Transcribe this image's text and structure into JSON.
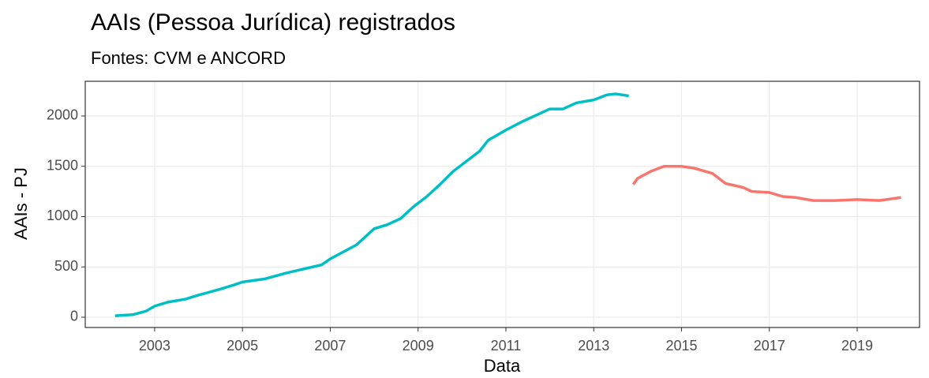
{
  "chart_data": {
    "type": "line",
    "title": "AAIs (Pessoa Jurídica) registrados",
    "subtitle": "Fontes: CVM e ANCORD",
    "x_label": "Data",
    "y_label": "AAIs - PJ",
    "xlim": [
      2001.42,
      2020.42
    ],
    "xticks": [
      2003,
      2005,
      2007,
      2009,
      2011,
      2013,
      2015,
      2017,
      2019
    ],
    "ylim": [
      -102,
      2345
    ],
    "yticks": [
      0,
      500,
      1000,
      1500,
      2000
    ],
    "grid": true,
    "series": [
      {
        "color": "#00bfc4",
        "x": [
          2002.1,
          2002.5,
          2002.8,
          2003.0,
          2003.3,
          2003.7,
          2004.0,
          2004.5,
          2004.8,
          2005.0,
          2005.5,
          2006.0,
          2006.5,
          2006.8,
          2007.0,
          2007.3,
          2007.6,
          2007.8,
          2008.0,
          2008.3,
          2008.6,
          2008.9,
          2009.2,
          2009.5,
          2009.8,
          2010.1,
          2010.4,
          2010.6,
          2011.0,
          2011.4,
          2011.8,
          2012.0,
          2012.3,
          2012.6,
          2013.0,
          2013.3,
          2013.5,
          2013.8
        ],
        "values": [
          15,
          25,
          60,
          110,
          150,
          180,
          220,
          280,
          320,
          350,
          380,
          440,
          490,
          520,
          580,
          650,
          720,
          800,
          880,
          920,
          980,
          1100,
          1200,
          1320,
          1450,
          1550,
          1650,
          1760,
          1860,
          1950,
          2030,
          2070,
          2070,
          2130,
          2160,
          2210,
          2220,
          2200
        ]
      },
      {
        "color": "#f8766d",
        "x": [
          2013.9,
          2014.0,
          2014.3,
          2014.6,
          2015.0,
          2015.3,
          2015.7,
          2016.0,
          2016.4,
          2016.6,
          2017.0,
          2017.3,
          2017.6,
          2018.0,
          2018.5,
          2019.0,
          2019.5,
          2020.0
        ],
        "values": [
          1320,
          1380,
          1450,
          1500,
          1500,
          1480,
          1430,
          1330,
          1290,
          1250,
          1240,
          1200,
          1190,
          1160,
          1160,
          1170,
          1160,
          1190
        ]
      }
    ]
  }
}
